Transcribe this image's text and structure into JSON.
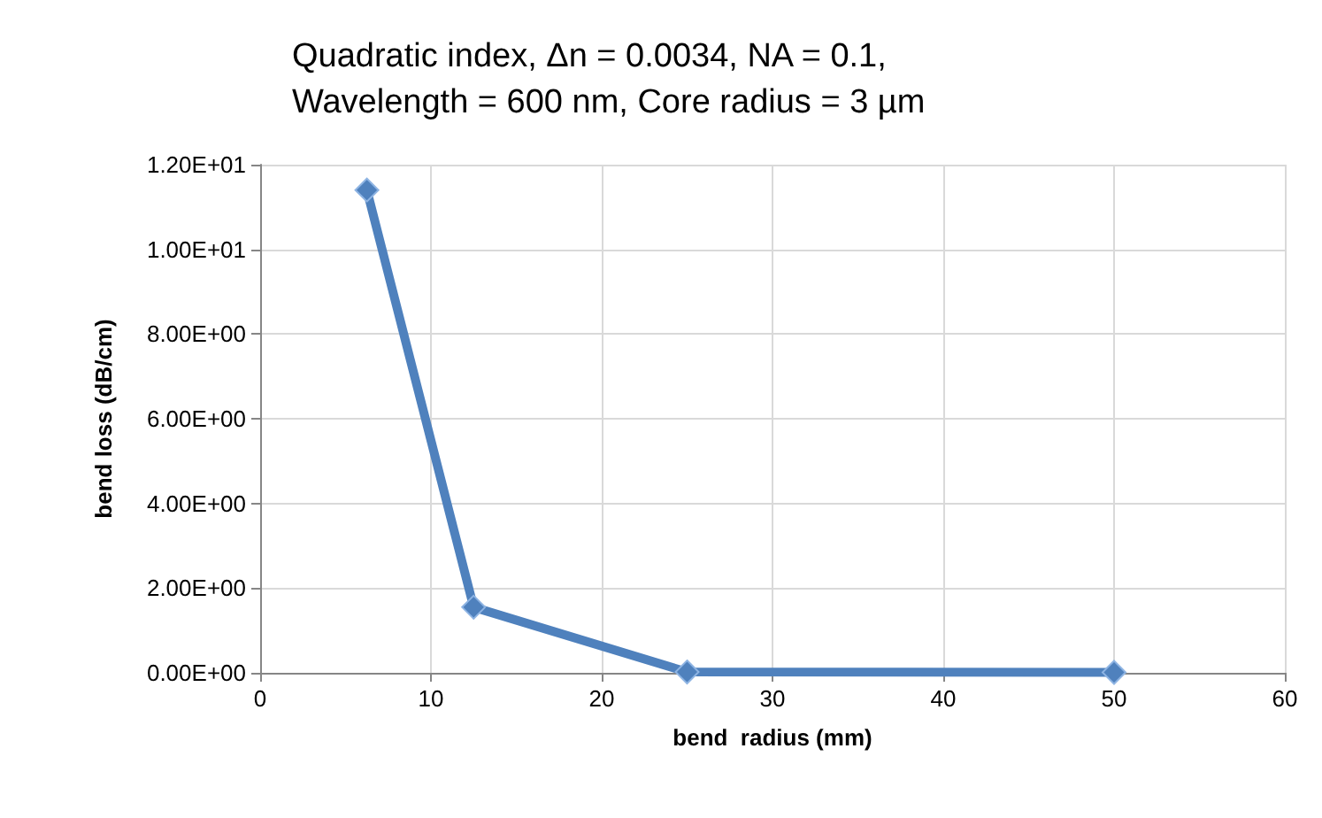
{
  "chart_data": {
    "type": "line",
    "title": "Quadratic index, Δn = 0.0034, NA = 0.1, Wavelength = 600 nm, Core radius = 3 µm",
    "xlabel": "bend  radius (mm)",
    "ylabel": "bend loss (dB/cm)",
    "x": [
      6.25,
      12.5,
      25,
      50
    ],
    "series": [
      {
        "color": "#4f81bd",
        "values": [
          11.4,
          1.55,
          0.02,
          0.01
        ]
      }
    ],
    "xlim": [
      0,
      60
    ],
    "xticks": [
      0,
      10,
      20,
      30,
      40,
      50,
      60
    ],
    "ylim": [
      0,
      12
    ],
    "yticks": [
      {
        "value": 0,
        "label": "0.00E+00"
      },
      {
        "value": 2,
        "label": "2.00E+00"
      },
      {
        "value": 4,
        "label": "4.00E+00"
      },
      {
        "value": 6,
        "label": "6.00E+00"
      },
      {
        "value": 8,
        "label": "8.00E+00"
      },
      {
        "value": 10,
        "label": "1.00E+01"
      },
      {
        "value": 12,
        "label": "1.20E+01"
      }
    ],
    "grid": true,
    "marker": "diamond",
    "line_style": "solid"
  }
}
